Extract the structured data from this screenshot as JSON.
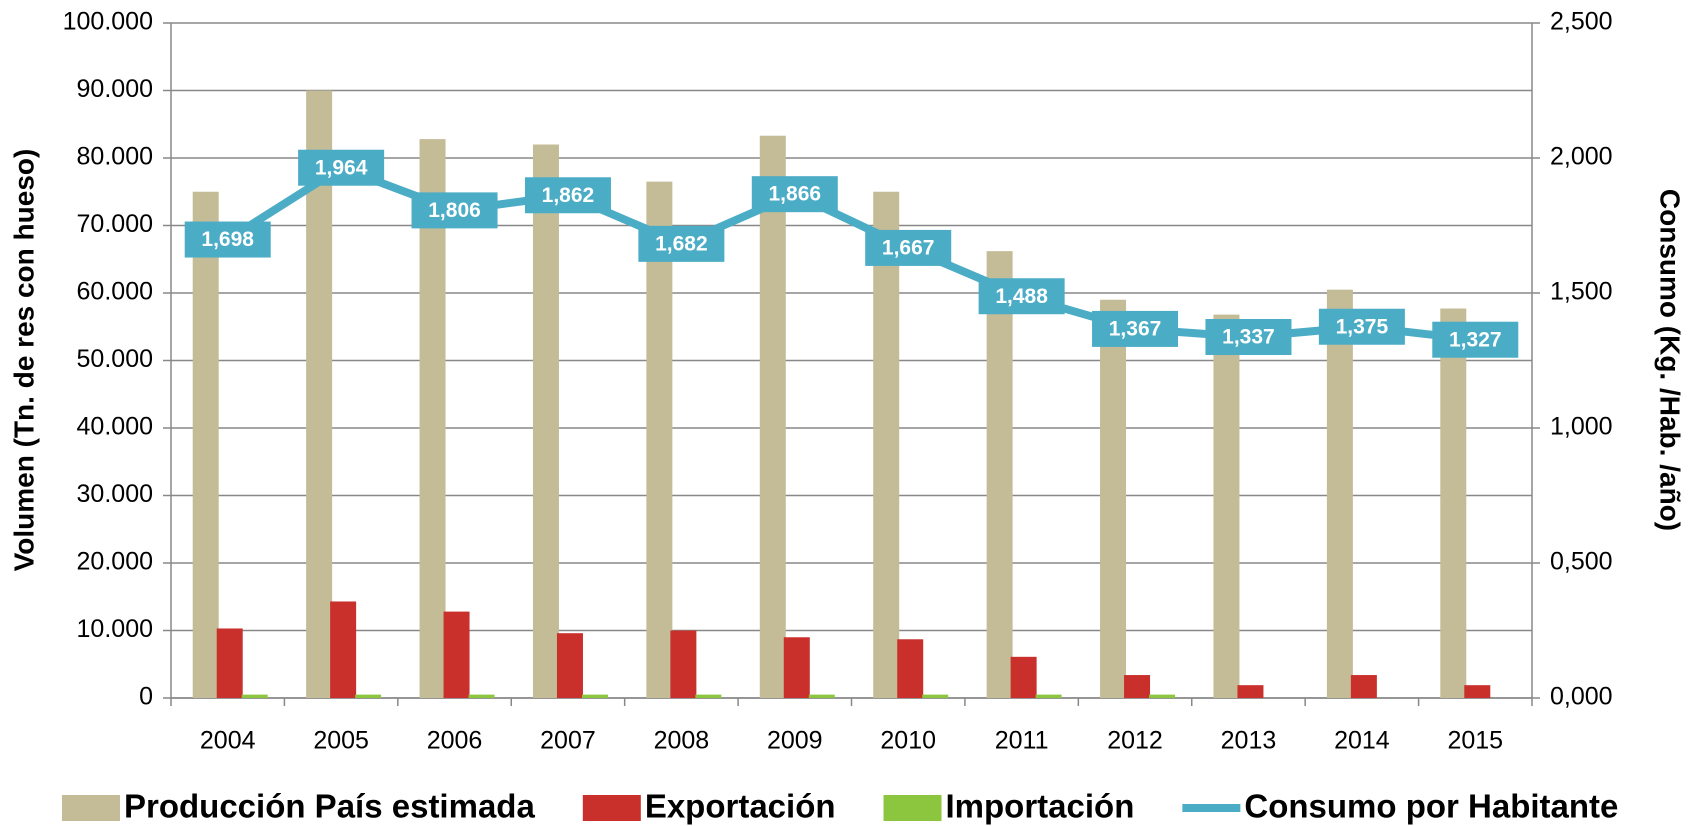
{
  "chart_data": {
    "type": "bar_line",
    "categories": [
      "2004",
      "2005",
      "2006",
      "2007",
      "2008",
      "2009",
      "2010",
      "2011",
      "2012",
      "2013",
      "2014",
      "2015"
    ],
    "y_label": "Volumen (Tn. de res con hueso)",
    "y2_label": "Consumo (Kg. /Hab. /año)",
    "ylim": [
      0,
      100000
    ],
    "yticks": [
      {
        "value": 0,
        "label": "0"
      },
      {
        "value": 10000,
        "label": "10.000"
      },
      {
        "value": 20000,
        "label": "20.000"
      },
      {
        "value": 30000,
        "label": "30.000"
      },
      {
        "value": 40000,
        "label": "40.000"
      },
      {
        "value": 50000,
        "label": "50.000"
      },
      {
        "value": 60000,
        "label": "60.000"
      },
      {
        "value": 70000,
        "label": "70.000"
      },
      {
        "value": 80000,
        "label": "80.000"
      },
      {
        "value": 90000,
        "label": "90.000"
      },
      {
        "value": 100000,
        "label": "100.000"
      }
    ],
    "y2lim": [
      0,
      2.5
    ],
    "y2ticks": [
      {
        "value": 0,
        "label": "0,000"
      },
      {
        "value": 0.5,
        "label": "0,500"
      },
      {
        "value": 1,
        "label": "1,000"
      },
      {
        "value": 1.5,
        "label": "1,500"
      },
      {
        "value": 2,
        "label": "2,000"
      },
      {
        "value": 2.5,
        "label": "2,500"
      }
    ],
    "grid": true,
    "legend": "bottom",
    "series": [
      {
        "name": "Producción País estimada",
        "type": "bar",
        "color": "#c4bc96",
        "values": [
          75000,
          90000,
          82800,
          82000,
          76500,
          83300,
          75000,
          66200,
          59000,
          56800,
          60500,
          57700
        ]
      },
      {
        "name": "Exportación",
        "type": "bar",
        "color": "#c9302c",
        "values": [
          10300,
          14300,
          12800,
          9600,
          10000,
          9000,
          8700,
          6100,
          3400,
          1900,
          3400,
          1900
        ]
      },
      {
        "name": "Importación",
        "type": "bar",
        "color": "#8cc63f",
        "values": [
          500,
          500,
          500,
          500,
          500,
          500,
          500,
          500,
          500,
          0,
          0,
          0
        ]
      },
      {
        "name": "Consumo por Habitante",
        "type": "line",
        "axis": "y2",
        "color": "#4bacc6",
        "values": [
          1.698,
          1.964,
          1.806,
          1.862,
          1.682,
          1.866,
          1.667,
          1.488,
          1.367,
          1.337,
          1.375,
          1.327
        ],
        "value_labels": [
          "1,698",
          "1,964",
          "1,806",
          "1,862",
          "1,682",
          "1,866",
          "1,667",
          "1,488",
          "1,367",
          "1,337",
          "1,375",
          "1,327"
        ]
      }
    ]
  }
}
